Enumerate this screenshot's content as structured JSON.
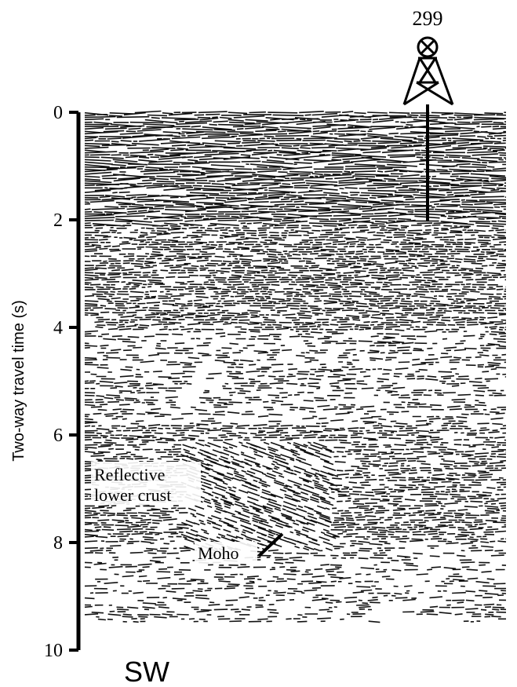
{
  "axis": {
    "label": "Two-way travel time (s)",
    "ylim": [
      0,
      10
    ],
    "yticks": [
      0,
      2,
      4,
      6,
      8,
      10
    ]
  },
  "well": {
    "label": "299"
  },
  "annotations": {
    "reflective": [
      "Reflective",
      "lower crust"
    ],
    "moho": "Moho"
  },
  "direction": "SW"
}
